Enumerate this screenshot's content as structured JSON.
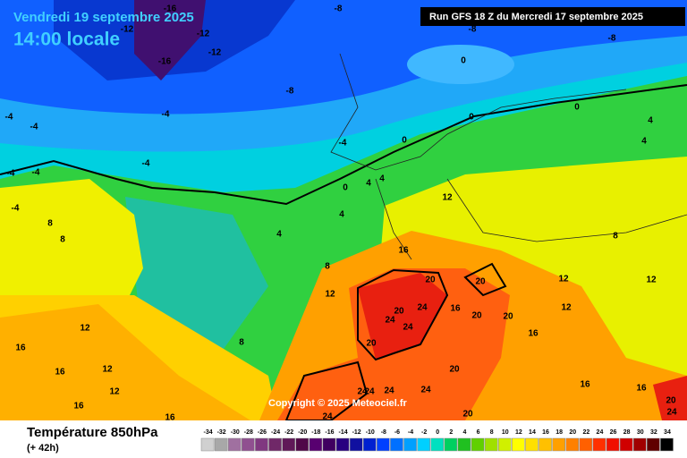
{
  "header": {
    "date": "Vendredi 19 septembre 2025",
    "time": "14:00 locale",
    "run": "Run GFS 18 Z du Mercredi 17 septembre 2025"
  },
  "copyright": "Copyright © 2025 Meteociel.fr",
  "legend": {
    "title": "Température 850hPa",
    "subtitle": "(+ 42h)",
    "ticks": [
      -34,
      -32,
      -30,
      -28,
      -26,
      -24,
      -22,
      -20,
      -18,
      -16,
      -14,
      -12,
      -10,
      -8,
      -6,
      -4,
      -2,
      0,
      2,
      4,
      6,
      8,
      10,
      12,
      14,
      16,
      18,
      20,
      22,
      24,
      26,
      28,
      30,
      32,
      34
    ],
    "colors": [
      "#d0d0d0",
      "#a8a8a8",
      "#a070a0",
      "#905090",
      "#803880",
      "#702868",
      "#601858",
      "#500848",
      "#580070",
      "#400060",
      "#280080",
      "#1010a0",
      "#0020d0",
      "#0040ff",
      "#0070ff",
      "#00a0ff",
      "#00d0ff",
      "#00e0c0",
      "#00d060",
      "#20c020",
      "#60d000",
      "#a0e000",
      "#d0f000",
      "#ffff00",
      "#ffe000",
      "#ffc000",
      "#ffa000",
      "#ff8000",
      "#ff6000",
      "#ff3000",
      "#f01000",
      "#d00000",
      "#a00000",
      "#600000",
      "#000000"
    ]
  },
  "contour_labels": [
    -16,
    -8,
    -12,
    -12,
    -8,
    -8,
    -12,
    -16,
    -8,
    0,
    0,
    0,
    0,
    0,
    -4,
    -4,
    -4,
    -4,
    -4,
    -4,
    -4,
    -4,
    4,
    4,
    4,
    4,
    4,
    4,
    8,
    8,
    8,
    8,
    8,
    12,
    12,
    12,
    12,
    12,
    12,
    12,
    12,
    16,
    16,
    16,
    16,
    16,
    16,
    16,
    16,
    16,
    20,
    20,
    20,
    20,
    20,
    20,
    20,
    20,
    20,
    24,
    24,
    24,
    24,
    24,
    24,
    24,
    24,
    24
  ]
}
